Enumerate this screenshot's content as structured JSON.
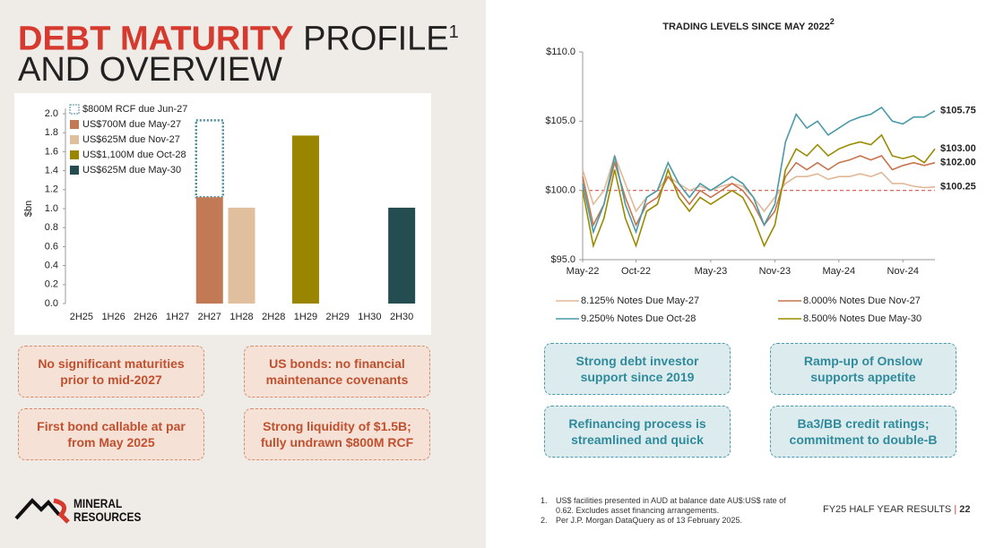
{
  "slide": {
    "title_red": "DEBT MATURITY",
    "title_rest": "PROFILE",
    "title_sup": "1",
    "title_line2": "AND OVERVIEW",
    "left_boxes": [
      "No significant maturities prior to mid-2027",
      "US bonds: no financial maintenance covenants",
      "First bond callable at par from May 2025",
      "Strong liquidity of $1.5B; fully undrawn $800M RCF"
    ],
    "right_boxes": [
      "Strong debt investor support since 2019",
      "Ramp-up of Onslow supports appetite",
      "Refinancing process is streamlined and quick",
      "Ba3/BB credit ratings; commitment to double-B"
    ],
    "footnotes": [
      "US$ facilities presented in AUD at balance date AU$:US$ rate of 0.62. Excludes asset financing arrangements.",
      "Per J.P. Morgan DataQuery as of 13 February 2025."
    ],
    "footnote_numbers": [
      "1.",
      "2."
    ],
    "footer": "FY25 HALF YEAR RESULTS",
    "page": "22",
    "logo_top": "MINERAL",
    "logo_bottom": "RESOURCES"
  },
  "chart_data": [
    {
      "type": "bar",
      "stacked": true,
      "y_label": "$bn",
      "categories": [
        "2H25",
        "1H26",
        "2H26",
        "1H27",
        "2H27",
        "1H28",
        "2H28",
        "1H29",
        "2H29",
        "1H30",
        "2H30"
      ],
      "series": [
        {
          "name": "$800M RCF due Jun-27",
          "color": "#4a8a9a",
          "style": "dashed",
          "values": [
            null,
            null,
            null,
            null,
            0.81,
            null,
            null,
            null,
            null,
            null,
            null
          ]
        },
        {
          "name": "US$700M due May-27",
          "color": "#c17a53",
          "values": [
            null,
            null,
            null,
            null,
            1.12,
            null,
            null,
            null,
            null,
            null,
            null
          ]
        },
        {
          "name": "US$625M due Nov-27",
          "color": "#dfbf9e",
          "values": [
            null,
            null,
            null,
            null,
            null,
            1.01,
            null,
            null,
            null,
            null,
            null
          ]
        },
        {
          "name": "US$1,100M due Oct-28",
          "color": "#9a8500",
          "values": [
            null,
            null,
            null,
            null,
            null,
            null,
            null,
            1.77,
            null,
            null,
            null
          ]
        },
        {
          "name": "US$625M due May-30",
          "color": "#244d52",
          "values": [
            null,
            null,
            null,
            null,
            null,
            null,
            null,
            null,
            null,
            null,
            1.01
          ]
        }
      ],
      "ylim": [
        0,
        2
      ],
      "yticks": [
        {
          "value": 0,
          "label": "0.0"
        },
        0.2,
        0.4,
        0.6,
        0.8,
        {
          "value": 1,
          "label": "1.0"
        },
        1.2,
        1.4,
        1.6,
        1.8,
        {
          "value": 2,
          "label": "2.0"
        }
      ]
    },
    {
      "type": "line",
      "title": "TRADING LEVELS SINCE MAY 2022",
      "title_sup": "2",
      "categories": [
        "May-22",
        "Jun-22",
        "Jul-22",
        "Aug-22",
        "Sep-22",
        "Oct-22",
        "Nov-22",
        "Dec-22",
        "Jan-23",
        "Feb-23",
        "Mar-23",
        "Apr-23",
        "May-23",
        "Jun-23",
        "Jul-23",
        "Aug-23",
        "Sep-23",
        "Oct-23",
        "Nov-23",
        "Dec-23",
        "Jan-24",
        "Feb-24",
        "Mar-24",
        "Apr-24",
        "May-24",
        "Jun-24",
        "Jul-24",
        "Aug-24",
        "Sep-24",
        "Oct-24",
        "Nov-24",
        "Dec-24",
        "Jan-25",
        "Feb-25"
      ],
      "xticks": [
        "May-22",
        "Oct-22",
        "May-23",
        "Nov-23",
        "May-24",
        "Nov-24"
      ],
      "ylim": [
        95,
        110
      ],
      "yticks": [
        {
          "value": 95,
          "label": "$95.0"
        },
        {
          "value": 100,
          "label": "$100.0"
        },
        {
          "value": 105,
          "label": "$105.0"
        },
        {
          "value": 110,
          "label": "$110.0"
        }
      ],
      "reference_line": 100,
      "reference_color": "#d9534f",
      "series": [
        {
          "name": "8.125% Notes Due May-27",
          "color": "#e0b898",
          "end_label": "$100.25",
          "values": [
            101.5,
            99,
            100,
            102.5,
            100.5,
            98.5,
            99.5,
            100,
            101,
            100.5,
            100,
            100.3,
            100,
            100.3,
            100.5,
            100.3,
            99.5,
            98.5,
            99.5,
            100.5,
            101,
            101,
            101.2,
            100.8,
            101,
            101,
            101.2,
            101,
            101.3,
            100.5,
            100.5,
            100.3,
            100.2,
            100.25
          ]
        },
        {
          "name": "8.000% Notes Due Nov-27",
          "color": "#c8744f",
          "end_label": "$102.00",
          "values": [
            101,
            97.5,
            99,
            102,
            99.5,
            97.5,
            99,
            99.5,
            101,
            100,
            99,
            100,
            99.5,
            100,
            100.5,
            100,
            99,
            97.5,
            98.5,
            101,
            102,
            101.5,
            102,
            101.5,
            102,
            102.2,
            102.5,
            102.2,
            102.5,
            101.5,
            101.8,
            102,
            101.8,
            102
          ]
        },
        {
          "name": "9.250% Notes Due Oct-28",
          "color": "#4a9aa8",
          "end_label": "$105.75",
          "values": [
            100.5,
            97,
            99,
            102.5,
            99,
            97,
            99.5,
            100,
            102,
            100.5,
            99.5,
            100.5,
            100,
            100.5,
            101,
            100.5,
            99.5,
            97.5,
            99,
            103.5,
            105.5,
            104.5,
            105,
            104,
            104.5,
            105,
            105.3,
            105.5,
            106,
            105,
            104.8,
            105.3,
            105.3,
            105.75
          ]
        },
        {
          "name": "8.500% Notes Due May-30",
          "color": "#9a8a00",
          "end_label": "$103.00",
          "values": [
            100,
            96,
            98,
            101.5,
            98,
            96,
            98.5,
            99,
            101.5,
            99.5,
            98.5,
            99.5,
            99,
            99.5,
            100,
            99.5,
            98,
            96,
            97.5,
            101.5,
            103,
            102.5,
            103.3,
            102.5,
            103,
            103.3,
            103.5,
            103.3,
            104,
            102.5,
            102.3,
            102.5,
            102,
            103
          ]
        }
      ]
    }
  ]
}
